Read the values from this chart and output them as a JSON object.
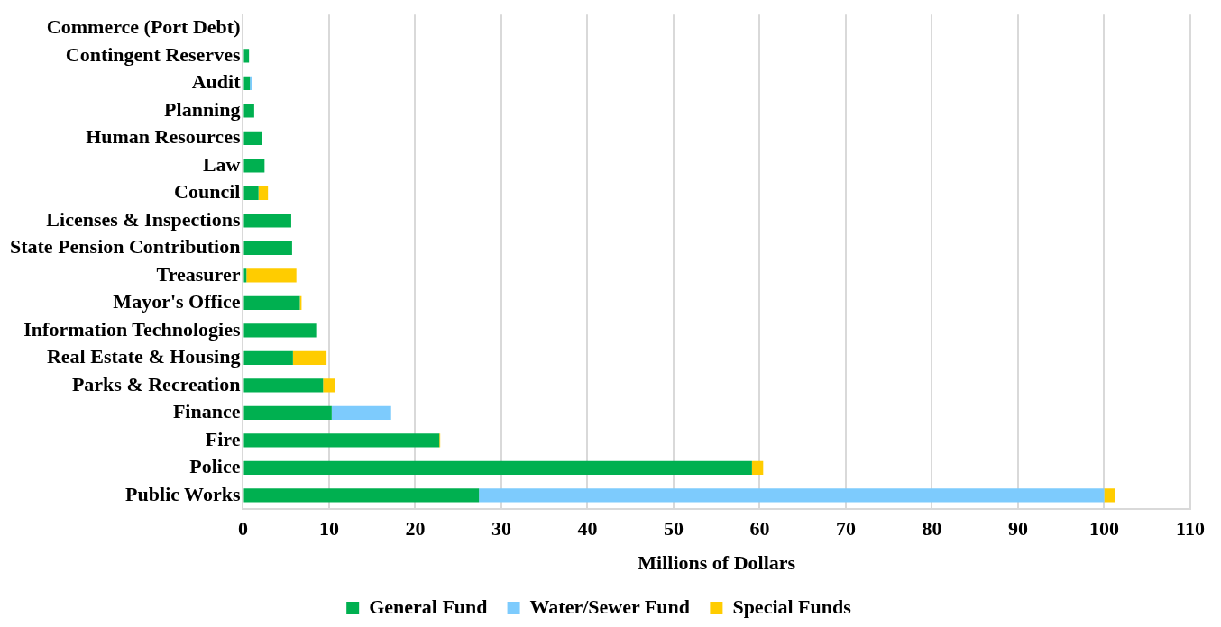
{
  "chart_data": {
    "type": "bar",
    "orientation": "horizontal",
    "stacked": true,
    "categories": [
      "Commerce (Port Debt)",
      "Contingent Reserves",
      "Audit",
      "Planning",
      "Human Resources",
      "Law",
      "Council",
      "Licenses & Inspections",
      "State Pension Contribution",
      "Treasurer",
      "Mayor's Office",
      "Information Technologies",
      "Real Estate & Housing",
      "Parks & Recreation",
      "Finance",
      "Fire",
      "Police",
      "Public Works"
    ],
    "series": [
      {
        "name": "General Fund",
        "color": "#00b050",
        "values": [
          null,
          0.7,
          0.8,
          1.3,
          2.2,
          2.5,
          1.8,
          5.6,
          5.7,
          0.4,
          6.6,
          8.5,
          5.8,
          9.3,
          10.3,
          22.8,
          59.1,
          27.4
        ]
      },
      {
        "name": "Water/Sewer Fund",
        "color": "#7dcbfd",
        "values": [
          null,
          null,
          0.2,
          null,
          null,
          null,
          null,
          null,
          null,
          null,
          null,
          null,
          null,
          null,
          6.9,
          null,
          null,
          72.6
        ]
      },
      {
        "name": "Special Funds",
        "color": "#ffcc00",
        "values": [
          null,
          null,
          null,
          null,
          null,
          null,
          1.1,
          null,
          null,
          5.8,
          0.2,
          null,
          3.9,
          1.4,
          null,
          0.1,
          1.3,
          1.3
        ]
      }
    ],
    "xlabel": "Millions of Dollars",
    "xlim": [
      0,
      110
    ],
    "xticks": [
      0,
      10,
      20,
      30,
      40,
      50,
      60,
      70,
      80,
      90,
      100,
      110
    ],
    "grid": "x",
    "legend": "bottom"
  }
}
